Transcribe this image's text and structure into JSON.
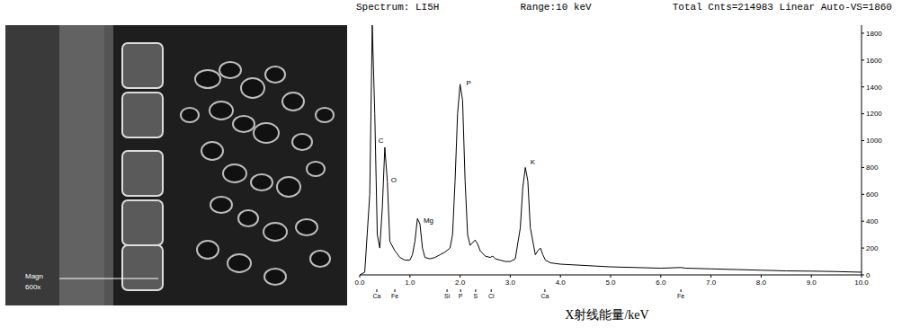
{
  "micrograph": {
    "texts": [
      "Magn",
      "600x"
    ]
  },
  "chart_data": {
    "type": "line",
    "header": [
      "Spectrum: LI5H",
      "Range:10 keV",
      "Total Cnts=214983 Linear Auto-VS=1860"
    ],
    "x_label": "X射线能量/keV",
    "x": [
      0.0,
      0.1,
      0.2,
      0.25,
      0.3,
      0.35,
      0.4,
      0.45,
      0.5,
      0.55,
      0.6,
      0.7,
      0.8,
      0.9,
      1.0,
      1.05,
      1.1,
      1.15,
      1.2,
      1.25,
      1.3,
      1.4,
      1.5,
      1.6,
      1.7,
      1.8,
      1.85,
      1.9,
      1.95,
      2.0,
      2.05,
      2.1,
      2.15,
      2.2,
      2.3,
      2.35,
      2.4,
      2.5,
      2.6,
      2.65,
      2.7,
      2.8,
      2.9,
      3.0,
      3.1,
      3.2,
      3.25,
      3.3,
      3.35,
      3.4,
      3.5,
      3.55,
      3.6,
      3.65,
      3.7,
      3.8,
      4.0,
      4.5,
      5.0,
      5.5,
      6.0,
      6.4,
      6.5,
      7.0,
      7.5,
      8.0,
      8.5,
      9.0,
      9.5,
      10.0
    ],
    "values": [
      0,
      20,
      600,
      1860,
      1200,
      300,
      200,
      500,
      950,
      700,
      250,
      180,
      130,
      110,
      110,
      150,
      250,
      420,
      380,
      200,
      130,
      120,
      130,
      150,
      170,
      200,
      300,
      700,
      1200,
      1420,
      1300,
      700,
      300,
      220,
      260,
      230,
      180,
      140,
      130,
      140,
      120,
      110,
      100,
      100,
      120,
      350,
      650,
      800,
      700,
      350,
      150,
      180,
      200,
      150,
      110,
      90,
      80,
      70,
      60,
      55,
      50,
      55,
      50,
      45,
      40,
      35,
      30,
      28,
      25,
      20
    ],
    "color": "#000000",
    "marker": "none",
    "xlim": [
      0,
      10
    ],
    "xticks": [
      {
        "value": 0,
        "label": "0.0"
      },
      {
        "value": 1,
        "label": "1.0"
      },
      {
        "value": 2,
        "label": "2.0"
      },
      {
        "value": 3,
        "label": "3.0"
      },
      {
        "value": 4,
        "label": "4.0"
      },
      {
        "value": 5,
        "label": "5.0"
      },
      {
        "value": 6,
        "label": "6.0"
      },
      {
        "value": 7,
        "label": "7.0"
      },
      {
        "value": 8,
        "label": "8.0"
      },
      {
        "value": 9,
        "label": "9.0"
      },
      {
        "value": 10,
        "label": "10.0"
      }
    ],
    "ylim": [
      0,
      1860
    ],
    "yticks": [
      0,
      200,
      400,
      600,
      800,
      1000,
      1200,
      1400,
      1600,
      1800
    ],
    "grid": false,
    "peak_labels": [
      {
        "label": "C",
        "x": 0.3,
        "y": 1000
      },
      {
        "label": "O",
        "x": 0.55,
        "y": 710
      },
      {
        "label": "Mg",
        "x": 1.2,
        "y": 410
      },
      {
        "label": "P",
        "x": 2.05,
        "y": 1430
      },
      {
        "label": "K",
        "x": 3.33,
        "y": 845
      }
    ],
    "element_markers": [
      {
        "label": "Ca",
        "x": 0.34
      },
      {
        "label": "Fe",
        "x": 0.7
      },
      {
        "label": "Si",
        "x": 1.74
      },
      {
        "label": "P",
        "x": 2.01
      },
      {
        "label": "S",
        "x": 2.31
      },
      {
        "label": "Cl",
        "x": 2.62
      },
      {
        "label": "Ca",
        "x": 3.69
      },
      {
        "label": "Fe",
        "x": 6.4
      }
    ]
  }
}
